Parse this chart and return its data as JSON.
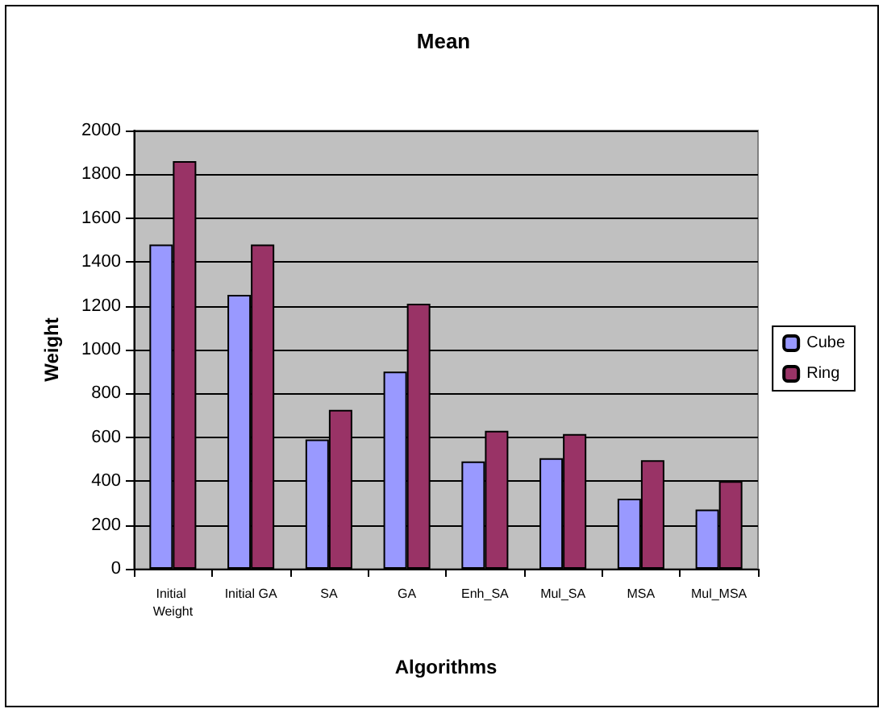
{
  "chart_data": {
    "type": "bar",
    "title": "Mean",
    "xlabel": "Algorithms",
    "ylabel": "Weight",
    "categories": [
      "Initial Weight",
      "Initial GA",
      "SA",
      "GA",
      "Enh_SA",
      "Mul_SA",
      "MSA",
      "Mul_MSA"
    ],
    "series": [
      {
        "name": "Cube",
        "color": "#9999ff",
        "values": [
          1480,
          1250,
          590,
          900,
          490,
          505,
          320,
          270
        ]
      },
      {
        "name": "Ring",
        "color": "#993366",
        "values": [
          1860,
          1480,
          725,
          1210,
          630,
          615,
          495,
          400
        ]
      }
    ],
    "ylim": [
      0,
      2000
    ],
    "yticks": [
      0,
      200,
      400,
      600,
      800,
      1000,
      1200,
      1400,
      1600,
      1800,
      2000
    ],
    "grid": "y",
    "legend": "right"
  }
}
